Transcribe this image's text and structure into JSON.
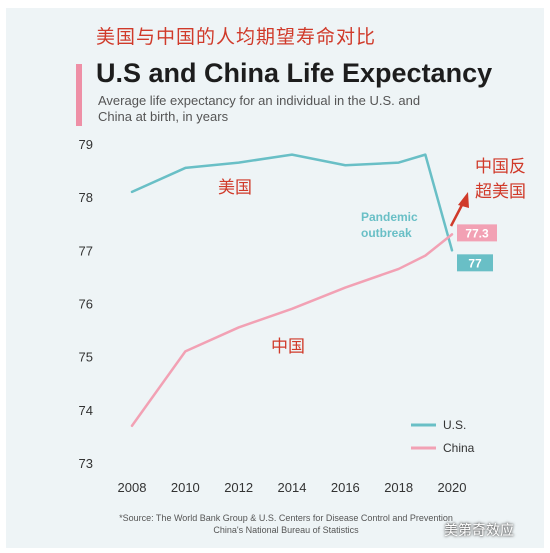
{
  "header": {
    "cn_title": "美国与中国的人均期望寿命对比",
    "title": "U.S and China Life Expectancy",
    "subtitle": "Average life expectancy for an individual in the U.S. and China at birth, in years"
  },
  "annotations": {
    "us_cn": "美国",
    "china_cn": "中国",
    "overtake_line1": "中国反",
    "overtake_line2": "超美国",
    "pandemic_line1": "Pandemic",
    "pandemic_line2": "outbreak",
    "us_end_label": "77",
    "china_end_label": "77.3"
  },
  "source": {
    "line1": "*Source: The World Bank Group & U.S. Centers for Disease Control and Prevention",
    "line2": "China's National Bureau of Statistics"
  },
  "watermark": "美第奇效应",
  "colors": {
    "us": "#69bfc6",
    "china": "#f2a1b4",
    "annotation": "#d03a2a",
    "background": "#eef4f6"
  },
  "chart_data": {
    "type": "line",
    "x": [
      2008,
      2010,
      2012,
      2014,
      2016,
      2018,
      2019,
      2020
    ],
    "xticks": [
      2008,
      2010,
      2012,
      2014,
      2016,
      2018,
      2020
    ],
    "yticks": [
      73,
      74,
      75,
      76,
      77,
      78,
      79
    ],
    "xlim": [
      2008,
      2020
    ],
    "ylim": [
      73,
      79
    ],
    "series": [
      {
        "name": "U.S.",
        "values": [
          78.1,
          78.55,
          78.65,
          78.8,
          78.6,
          78.65,
          78.8,
          77.0
        ]
      },
      {
        "name": "China",
        "values": [
          73.7,
          75.1,
          75.55,
          75.9,
          76.3,
          76.65,
          76.9,
          77.3
        ]
      }
    ],
    "legend": "bottom-right",
    "grid": false
  }
}
